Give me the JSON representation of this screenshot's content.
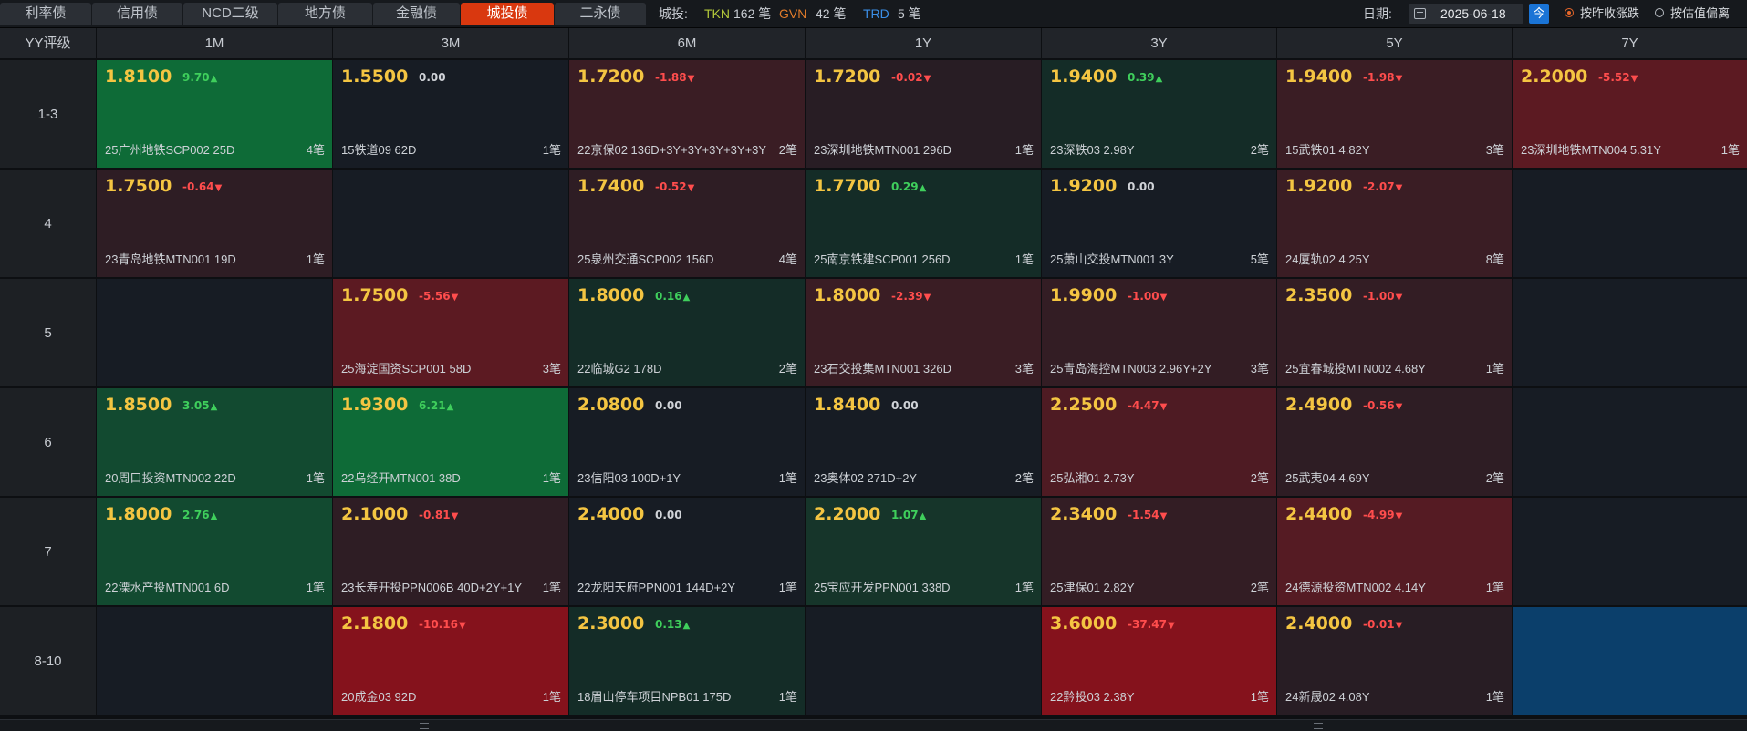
{
  "tabs": [
    {
      "label": "利率债",
      "active": false
    },
    {
      "label": "信用债",
      "active": false
    },
    {
      "label": "NCD二级",
      "active": false
    },
    {
      "label": "地方债",
      "active": false
    },
    {
      "label": "金融债",
      "active": false
    },
    {
      "label": "城投债",
      "active": true
    },
    {
      "label": "二永债",
      "active": false
    }
  ],
  "stats": {
    "label": "城投:",
    "tkn_label": "TKN",
    "tkn_value": "162 笔",
    "gvn_label": "GVN",
    "gvn_value": "42 笔",
    "trd_label": "TRD",
    "trd_value": "5 笔"
  },
  "date": {
    "label": "日期:",
    "value": "2025-06-18",
    "today_label": "今"
  },
  "mode": {
    "option1": "按昨收涨跌",
    "option2": "按估值偏离",
    "selected": "option1"
  },
  "colors": {
    "green_strong": "#0e6b37",
    "green_mid": "#124a30",
    "green_dark": "#142c27",
    "red_strong": "#85121c",
    "red_mid": "#5c1a22",
    "red_dark": "#3a1d24",
    "neutral": "#171c24",
    "blue": "#0b3f6b"
  },
  "table": {
    "corner": "YY评级",
    "columns": [
      "1M",
      "3M",
      "6M",
      "1Y",
      "3Y",
      "5Y",
      "7Y"
    ],
    "rows": [
      {
        "label": "1-3",
        "cells": [
          {
            "yield": "1.8100",
            "change": "9.70",
            "dir": "up",
            "bond": "25广州地铁SCP002 25D",
            "count": "4笔",
            "bg": "#0e6b37"
          },
          {
            "yield": "1.5500",
            "change": "0.00",
            "dir": "flat",
            "bond": "15铁道09 62D",
            "count": "1笔",
            "bg": "#171c24"
          },
          {
            "yield": "1.7200",
            "change": "-1.88",
            "dir": "down",
            "bond": "22京保02 136D+3Y+3Y+3Y+3Y+3Y",
            "count": "2笔",
            "bg": "#3a1d24"
          },
          {
            "yield": "1.7200",
            "change": "-0.02",
            "dir": "down",
            "bond": "23深圳地铁MTN001 296D",
            "count": "1笔",
            "bg": "#281d24"
          },
          {
            "yield": "1.9400",
            "change": "0.39",
            "dir": "up",
            "bond": "23深铁03 2.98Y",
            "count": "2笔",
            "bg": "#142c27"
          },
          {
            "yield": "1.9400",
            "change": "-1.98",
            "dir": "down",
            "bond": "15武铁01 4.82Y",
            "count": "3笔",
            "bg": "#3a1d24"
          },
          {
            "yield": "2.2000",
            "change": "-5.52",
            "dir": "down",
            "bond": "23深圳地铁MTN004 5.31Y",
            "count": "1笔",
            "bg": "#5c1a22"
          }
        ]
      },
      {
        "label": "4",
        "cells": [
          {
            "yield": "1.7500",
            "change": "-0.64",
            "dir": "down",
            "bond": "23青岛地铁MTN001 19D",
            "count": "1笔",
            "bg": "#2e1d24"
          },
          null,
          {
            "yield": "1.7400",
            "change": "-0.52",
            "dir": "down",
            "bond": "25泉州交通SCP002 156D",
            "count": "4笔",
            "bg": "#2e1d24"
          },
          {
            "yield": "1.7700",
            "change": "0.29",
            "dir": "up",
            "bond": "25南京铁建SCP001 256D",
            "count": "1笔",
            "bg": "#142c27"
          },
          {
            "yield": "1.9200",
            "change": "0.00",
            "dir": "flat",
            "bond": "25萧山交投MTN001 3Y",
            "count": "5笔",
            "bg": "#171c24"
          },
          {
            "yield": "1.9200",
            "change": "-2.07",
            "dir": "down",
            "bond": "24厦轨02 4.25Y",
            "count": "8笔",
            "bg": "#3a1d24"
          },
          null
        ]
      },
      {
        "label": "5",
        "cells": [
          null,
          {
            "yield": "1.7500",
            "change": "-5.56",
            "dir": "down",
            "bond": "25海淀国资SCP001 58D",
            "count": "3笔",
            "bg": "#5c1a22"
          },
          {
            "yield": "1.8000",
            "change": "0.16",
            "dir": "up",
            "bond": "22临城G2 178D",
            "count": "2笔",
            "bg": "#142c27"
          },
          {
            "yield": "1.8000",
            "change": "-2.39",
            "dir": "down",
            "bond": "23石交投集MTN001 326D",
            "count": "3笔",
            "bg": "#3a1d24"
          },
          {
            "yield": "1.9900",
            "change": "-1.00",
            "dir": "down",
            "bond": "25青岛海控MTN003 2.96Y+2Y",
            "count": "3笔",
            "bg": "#331d24"
          },
          {
            "yield": "2.3500",
            "change": "-1.00",
            "dir": "down",
            "bond": "25宜春城投MTN002 4.68Y",
            "count": "1笔",
            "bg": "#331d24"
          },
          null
        ]
      },
      {
        "label": "6",
        "cells": [
          {
            "yield": "1.8500",
            "change": "3.05",
            "dir": "up",
            "bond": "20周口投资MTN002 22D",
            "count": "1笔",
            "bg": "#124a30"
          },
          {
            "yield": "1.9300",
            "change": "6.21",
            "dir": "up",
            "bond": "22乌经开MTN001 38D",
            "count": "1笔",
            "bg": "#0e6b37"
          },
          {
            "yield": "2.0800",
            "change": "0.00",
            "dir": "flat",
            "bond": "23信阳03 100D+1Y",
            "count": "1笔",
            "bg": "#171c24"
          },
          {
            "yield": "1.8400",
            "change": "0.00",
            "dir": "flat",
            "bond": "23奥体02 271D+2Y",
            "count": "2笔",
            "bg": "#171c24"
          },
          {
            "yield": "2.2500",
            "change": "-4.47",
            "dir": "down",
            "bond": "25弘湘01 2.73Y",
            "count": "2笔",
            "bg": "#4e1b23"
          },
          {
            "yield": "2.4900",
            "change": "-0.56",
            "dir": "down",
            "bond": "25武夷04 4.69Y",
            "count": "2笔",
            "bg": "#2e1d24"
          },
          null
        ]
      },
      {
        "label": "7",
        "cells": [
          {
            "yield": "1.8000",
            "change": "2.76",
            "dir": "up",
            "bond": "22溧水产投MTN001 6D",
            "count": "1笔",
            "bg": "#124a30"
          },
          {
            "yield": "2.1000",
            "change": "-0.81",
            "dir": "down",
            "bond": "23长寿开投PPN006B 40D+2Y+1Y",
            "count": "1笔",
            "bg": "#2e1d24"
          },
          {
            "yield": "2.4000",
            "change": "0.00",
            "dir": "flat",
            "bond": "22龙阳天府PPN001 144D+2Y",
            "count": "1笔",
            "bg": "#171c24"
          },
          {
            "yield": "2.2000",
            "change": "1.07",
            "dir": "up",
            "bond": "25宝应开发PPN001 338D",
            "count": "1笔",
            "bg": "#16352a"
          },
          {
            "yield": "2.3400",
            "change": "-1.54",
            "dir": "down",
            "bond": "25津保01 2.82Y",
            "count": "2笔",
            "bg": "#331d24"
          },
          {
            "yield": "2.4400",
            "change": "-4.99",
            "dir": "down",
            "bond": "24德源投资MTN002 4.14Y",
            "count": "1笔",
            "bg": "#551b23"
          },
          null
        ]
      },
      {
        "label": "8-10",
        "cells": [
          null,
          {
            "yield": "2.1800",
            "change": "-10.16",
            "dir": "down",
            "bond": "20成金03 92D",
            "count": "1笔",
            "bg": "#85121c"
          },
          {
            "yield": "2.3000",
            "change": "0.13",
            "dir": "up",
            "bond": "18眉山停车项目NPB01 175D",
            "count": "1笔",
            "bg": "#142c27"
          },
          null,
          {
            "yield": "3.6000",
            "change": "-37.47",
            "dir": "down",
            "bond": "22黔投03 2.38Y",
            "count": "1笔",
            "bg": "#85121c"
          },
          {
            "yield": "2.4000",
            "change": "-0.01",
            "dir": "down",
            "bond": "24新晟02 4.08Y",
            "count": "1笔",
            "bg": "#281d24"
          },
          {
            "empty": true,
            "bg": "#0b3f6b"
          }
        ]
      }
    ]
  }
}
